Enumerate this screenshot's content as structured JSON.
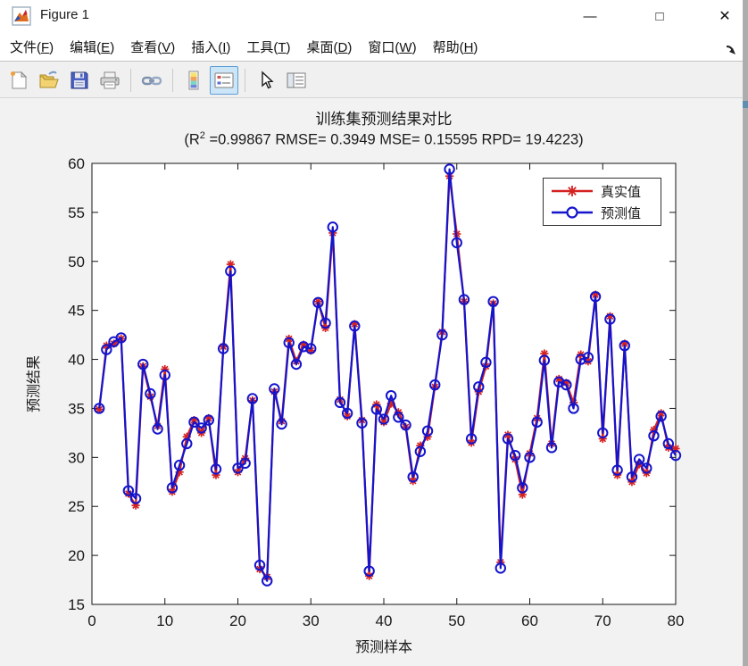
{
  "window": {
    "title": "Figure 1"
  },
  "titlebar_controls": {
    "minimize": "—",
    "maximize": "□",
    "close": "✕"
  },
  "menu": {
    "items": [
      {
        "label": "文件",
        "key": "F"
      },
      {
        "label": "编辑",
        "key": "E"
      },
      {
        "label": "查看",
        "key": "V"
      },
      {
        "label": "插入",
        "key": "I"
      },
      {
        "label": "工具",
        "key": "T"
      },
      {
        "label": "桌面",
        "key": "D"
      },
      {
        "label": "窗口",
        "key": "W"
      },
      {
        "label": "帮助",
        "key": "H"
      }
    ]
  },
  "toolbar": {
    "icons": [
      "new-figure",
      "open-file",
      "save-figure",
      "print-figure",
      "link-plot",
      "insert-colorbar",
      "insert-legend",
      "edit-plot",
      "property-inspector"
    ],
    "selected_icon": "insert-legend"
  },
  "chart_data": {
    "type": "line",
    "title": "训练集预测结果对比",
    "subtitle_parts": {
      "pre": "(R",
      "sup": "2",
      "post": " =0.99867 RMSE= 0.3949 MSE= 0.15595 RPD= 19.4223)"
    },
    "xlabel": "预测样本",
    "ylabel": "预测结果",
    "xlim": [
      0,
      80
    ],
    "ylim": [
      15,
      60
    ],
    "x_ticks": [
      0,
      10,
      20,
      30,
      40,
      50,
      60,
      70,
      80
    ],
    "y_ticks": [
      15,
      20,
      25,
      30,
      35,
      40,
      45,
      50,
      55,
      60
    ],
    "x_description": "sample index 1..80",
    "grid": false,
    "legend_position": "top-right",
    "colors": {
      "true": "#d42322",
      "pred": "#1414cc"
    },
    "series": [
      {
        "name": "真实值",
        "color": "#d42322",
        "marker": "asterisk",
        "values": [
          34.9,
          41.4,
          41.6,
          42.1,
          26.3,
          25.1,
          39.3,
          36.2,
          33.2,
          39.0,
          26.5,
          28.5,
          32.1,
          33.8,
          32.5,
          34.0,
          28.2,
          41.3,
          49.7,
          28.5,
          29.9,
          35.8,
          18.6,
          17.8,
          36.7,
          33.7,
          42.1,
          39.8,
          41.5,
          40.9,
          45.9,
          43.2,
          52.9,
          35.9,
          34.2,
          43.6,
          33.8,
          17.9,
          35.4,
          33.6,
          35.5,
          34.6,
          33.1,
          27.6,
          31.2,
          32.1,
          37.2,
          42.8,
          58.7,
          52.8,
          45.9,
          31.5,
          36.7,
          39.3,
          45.7,
          19.3,
          32.3,
          29.8,
          26.2,
          30.4,
          34.0,
          40.6,
          31.4,
          38.0,
          37.6,
          35.6,
          40.5,
          39.8,
          46.6,
          31.9,
          44.4,
          28.2,
          41.6,
          27.5,
          29.3,
          28.4,
          32.8,
          34.5,
          31.0,
          30.9
        ]
      },
      {
        "name": "预测值",
        "color": "#1414cc",
        "marker": "circle",
        "values": [
          35.0,
          41.0,
          41.8,
          42.2,
          26.6,
          25.8,
          39.5,
          36.5,
          32.9,
          38.4,
          26.9,
          29.2,
          31.4,
          33.6,
          33.0,
          33.8,
          28.8,
          41.1,
          49.0,
          28.9,
          29.4,
          36.0,
          19.0,
          17.4,
          37.0,
          33.4,
          41.7,
          39.5,
          41.3,
          41.1,
          45.8,
          43.7,
          53.5,
          35.6,
          34.5,
          43.4,
          33.5,
          18.4,
          34.9,
          33.9,
          36.3,
          34.1,
          33.3,
          28.0,
          30.6,
          32.7,
          37.4,
          42.5,
          59.4,
          51.9,
          46.1,
          31.9,
          37.2,
          39.7,
          45.9,
          18.7,
          31.9,
          30.2,
          26.9,
          30.0,
          33.6,
          39.9,
          31.0,
          37.7,
          37.4,
          35.0,
          40.0,
          40.2,
          46.4,
          32.5,
          44.1,
          28.7,
          41.4,
          28.0,
          29.8,
          28.9,
          32.2,
          34.2,
          31.4,
          30.2
        ]
      }
    ]
  }
}
